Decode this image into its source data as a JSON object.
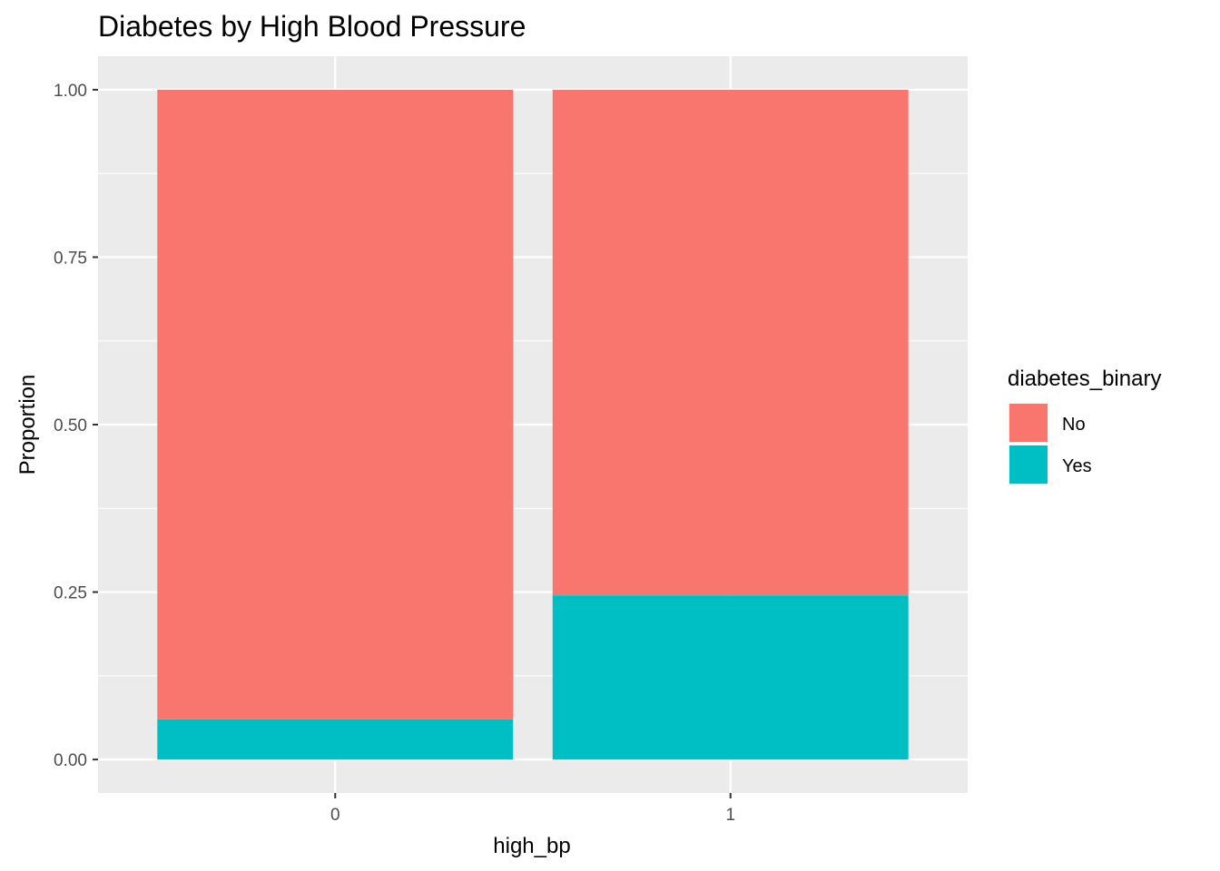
{
  "chart_data": {
    "type": "bar",
    "stacked": true,
    "title": "Diabetes by High Blood Pressure",
    "xlabel": "high_bp",
    "ylabel": "Proportion",
    "categories": [
      "0",
      "1"
    ],
    "series": [
      {
        "name": "No",
        "color": "#F8766D",
        "values": [
          0.94,
          0.755
        ]
      },
      {
        "name": "Yes",
        "color": "#00BFC4",
        "values": [
          0.06,
          0.245
        ]
      }
    ],
    "ylim": [
      -0.05,
      1.05
    ],
    "yticks": [
      0.0,
      0.25,
      0.5,
      0.75,
      1.0
    ],
    "ytick_labels": [
      "0.00",
      "0.25",
      "0.50",
      "0.75",
      "1.00"
    ],
    "grid": true,
    "panel_background": "#EBEBEB",
    "legend": {
      "title": "diabetes_binary",
      "position": "right"
    }
  }
}
